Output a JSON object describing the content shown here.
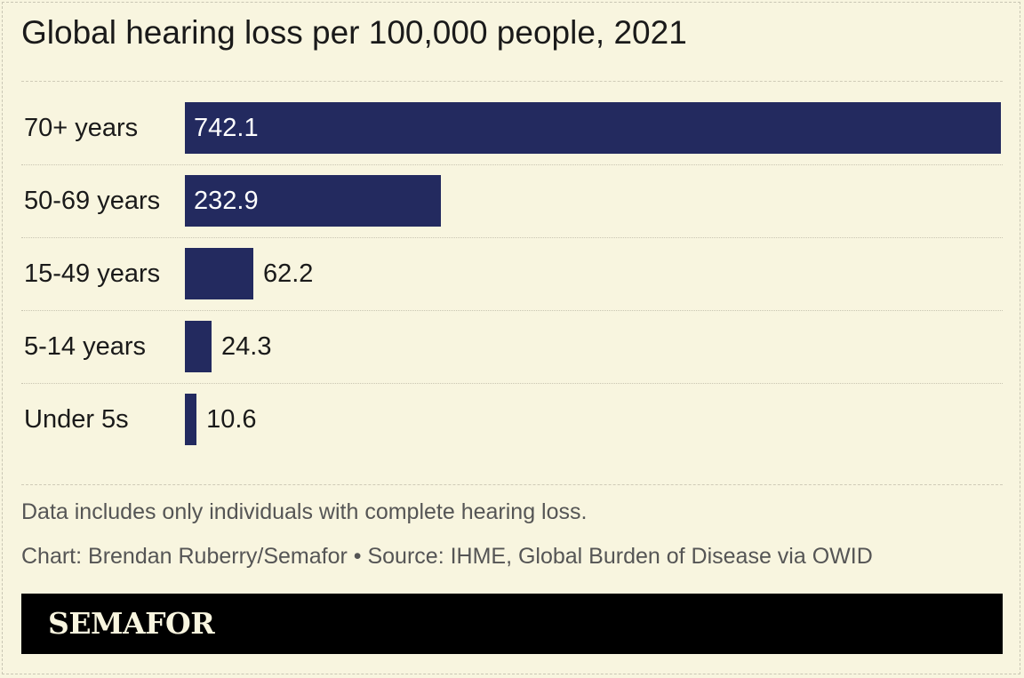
{
  "chart_data": {
    "type": "bar",
    "orientation": "horizontal",
    "title": "Global hearing loss per 100,000 people, 2021",
    "categories": [
      "70+ years",
      "50-69 years",
      "15-49 years",
      "5-14 years",
      "Under 5s"
    ],
    "values": [
      742.1,
      232.9,
      62.2,
      24.3,
      10.6
    ],
    "value_labels": [
      "742.1",
      "232.9",
      "62.2",
      "24.3",
      "10.6"
    ],
    "xlim": [
      0,
      742.1
    ],
    "xlabel": "",
    "ylabel": "",
    "grid": false,
    "bar_color": "#232a5f"
  },
  "footer": {
    "note": "Data includes only individuals with complete hearing loss.",
    "credit": "Chart: Brendan Ruberry/Semafor • Source: IHME, Global Burden of Disease via OWID"
  },
  "brand": {
    "name": "SEMAFOR"
  },
  "colors": {
    "background": "#f8f5df",
    "bar": "#232a5f",
    "brand_bar": "#000000"
  }
}
